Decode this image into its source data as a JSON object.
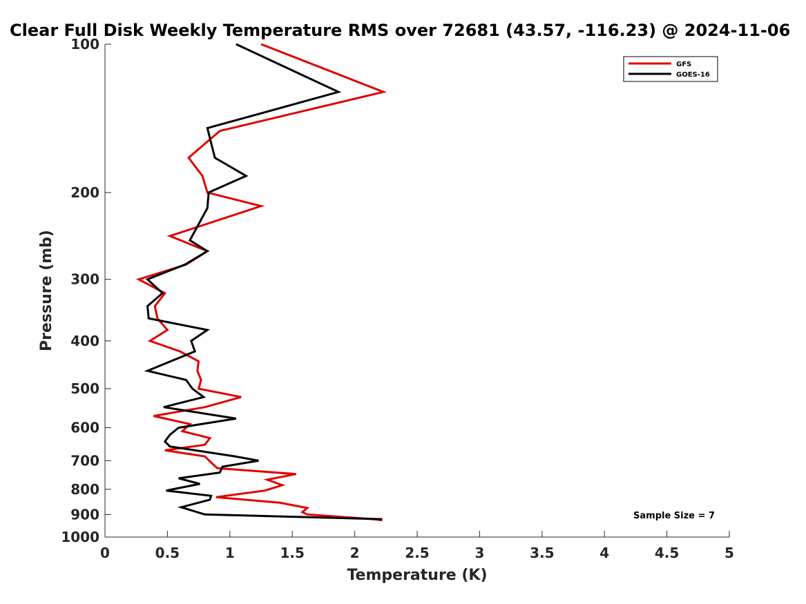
{
  "chart_data": {
    "type": "line",
    "title": "Clear Full Disk Weekly Temperature RMS over 72681 (43.57, -116.23) @ 2024-11-06",
    "xlabel": "Temperature (K)",
    "ylabel": "Pressure (mb)",
    "xlim": [
      0,
      5
    ],
    "ylim": [
      100,
      1000
    ],
    "y_scale": "log",
    "y_reversed": true,
    "x_ticks": [
      "0",
      "0.5",
      "1",
      "1.5",
      "2",
      "2.5",
      "3",
      "3.5",
      "4",
      "4.5",
      "5"
    ],
    "y_ticks": [
      "100",
      "200",
      "300",
      "400",
      "500",
      "600",
      "700",
      "800",
      "900",
      "1000"
    ],
    "grid": false,
    "legend_position": "top-right",
    "annotation": "Sample Size = 7",
    "series": [
      {
        "name": "GFS",
        "color": "#e00000",
        "points": [
          [
            1.25,
            100
          ],
          [
            2.23,
            125
          ],
          [
            0.92,
            150
          ],
          [
            0.67,
            170
          ],
          [
            0.78,
            185
          ],
          [
            0.82,
            200
          ],
          [
            1.25,
            213
          ],
          [
            0.52,
            245
          ],
          [
            0.82,
            263
          ],
          [
            0.65,
            280
          ],
          [
            0.27,
            300
          ],
          [
            0.48,
            320
          ],
          [
            0.4,
            340
          ],
          [
            0.42,
            360
          ],
          [
            0.5,
            380
          ],
          [
            0.36,
            400
          ],
          [
            0.6,
            420
          ],
          [
            0.75,
            440
          ],
          [
            0.74,
            460
          ],
          [
            0.77,
            480
          ],
          [
            0.75,
            500
          ],
          [
            1.09,
            520
          ],
          [
            0.8,
            545
          ],
          [
            0.39,
            568
          ],
          [
            0.68,
            590
          ],
          [
            0.62,
            610
          ],
          [
            0.84,
            630
          ],
          [
            0.8,
            650
          ],
          [
            0.48,
            667
          ],
          [
            0.8,
            686
          ],
          [
            0.85,
            706
          ],
          [
            0.9,
            725
          ],
          [
            1.53,
            745
          ],
          [
            1.3,
            765
          ],
          [
            1.42,
            785
          ],
          [
            1.28,
            805
          ],
          [
            0.89,
            830
          ],
          [
            1.4,
            852
          ],
          [
            1.62,
            873
          ],
          [
            1.58,
            890
          ],
          [
            1.62,
            900
          ],
          [
            2.15,
            920
          ],
          [
            2.22,
            925
          ]
        ]
      },
      {
        "name": "GOES-16",
        "color": "#000000",
        "points": [
          [
            1.05,
            100
          ],
          [
            1.87,
            125
          ],
          [
            0.82,
            148
          ],
          [
            0.88,
            170
          ],
          [
            1.13,
            185
          ],
          [
            0.83,
            200
          ],
          [
            0.82,
            215
          ],
          [
            0.68,
            250
          ],
          [
            0.82,
            263
          ],
          [
            0.64,
            280
          ],
          [
            0.34,
            300
          ],
          [
            0.46,
            320
          ],
          [
            0.34,
            340
          ],
          [
            0.35,
            360
          ],
          [
            0.82,
            380
          ],
          [
            0.69,
            400
          ],
          [
            0.72,
            420
          ],
          [
            0.34,
            460
          ],
          [
            0.65,
            480
          ],
          [
            0.7,
            500
          ],
          [
            0.79,
            520
          ],
          [
            0.47,
            545
          ],
          [
            1.05,
            575
          ],
          [
            0.59,
            600
          ],
          [
            0.52,
            620
          ],
          [
            0.48,
            640
          ],
          [
            0.52,
            655
          ],
          [
            1.04,
            686
          ],
          [
            1.23,
            700
          ],
          [
            0.94,
            720
          ],
          [
            0.92,
            740
          ],
          [
            0.59,
            760
          ],
          [
            0.76,
            780
          ],
          [
            0.49,
            805
          ],
          [
            0.85,
            825
          ],
          [
            0.84,
            840
          ],
          [
            0.61,
            870
          ],
          [
            0.8,
            900
          ],
          [
            2.22,
            920
          ]
        ]
      }
    ]
  }
}
